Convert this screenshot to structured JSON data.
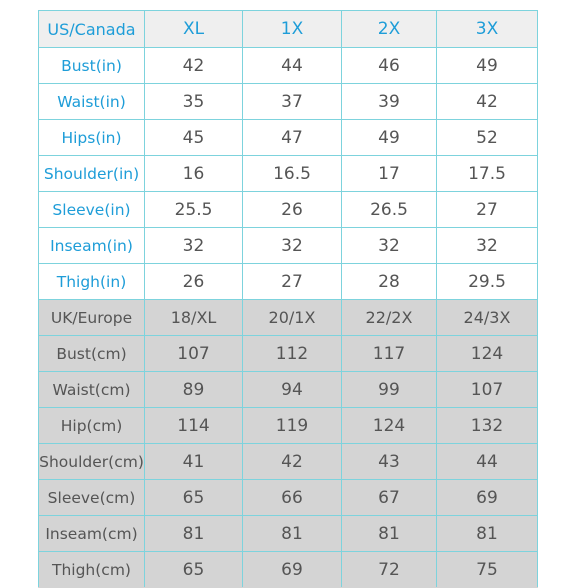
{
  "us_canada": {
    "header": [
      "US/Canada",
      "XL",
      "1X",
      "2X",
      "3X"
    ],
    "rows": [
      [
        "Bust(in)",
        "42",
        "44",
        "46",
        "49"
      ],
      [
        "Waist(in)",
        "35",
        "37",
        "39",
        "42"
      ],
      [
        "Hips(in)",
        "45",
        "47",
        "49",
        "52"
      ],
      [
        "Shoulder(in)",
        "16",
        "16.5",
        "17",
        "17.5"
      ],
      [
        "Sleeve(in)",
        "25.5",
        "26",
        "26.5",
        "27"
      ],
      [
        "Inseam(in)",
        "32",
        "32",
        "32",
        "32"
      ],
      [
        "Thigh(in)",
        "26",
        "27",
        "28",
        "29.5"
      ]
    ]
  },
  "uk_europe": {
    "header": [
      "UK/Europe",
      "18/XL",
      "20/1X",
      "22/2X",
      "24/3X"
    ],
    "rows": [
      [
        "Bust(cm)",
        "107",
        "112",
        "117",
        "124"
      ],
      [
        "Waist(cm)",
        "89",
        "94",
        "99",
        "107"
      ],
      [
        "Hip(cm)",
        "114",
        "119",
        "124",
        "132"
      ],
      [
        "Shoulder(cm)",
        "41",
        "42",
        "43",
        "44"
      ],
      [
        "Sleeve(cm)",
        "65",
        "66",
        "67",
        "69"
      ],
      [
        "Inseam(cm)",
        "81",
        "81",
        "81",
        "81"
      ],
      [
        "Thigh(cm)",
        "65",
        "69",
        "72",
        "75"
      ]
    ]
  },
  "colors": {
    "accent_text": "#1e9dd8",
    "grid_line": "#7dd3dd",
    "us_header_bg": "#efefef",
    "eu_section_bg": "#d4d4d4",
    "body_text": "#555555"
  }
}
